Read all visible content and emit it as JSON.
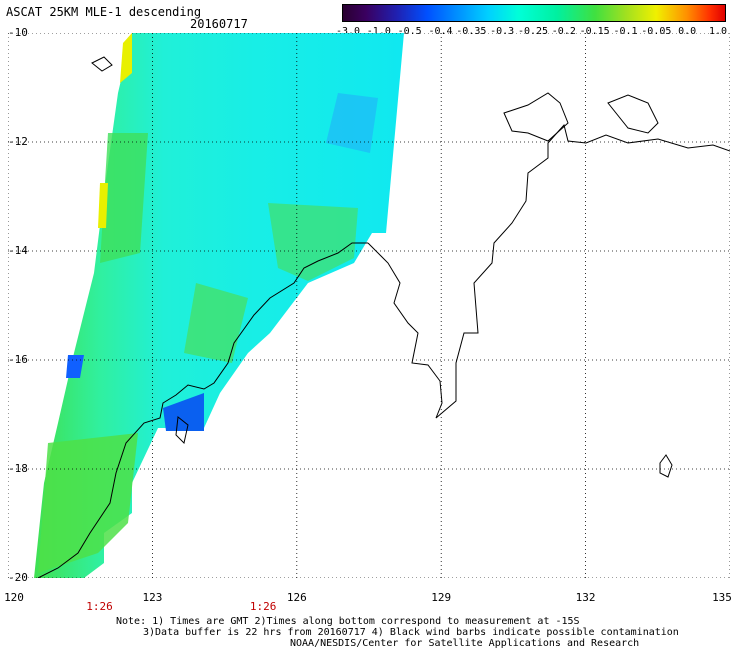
{
  "title": "ASCAT 25KM MLE-1 descending",
  "date": "20160717",
  "colorbar": {
    "ticks": [
      "-3.0",
      "-1.0",
      "-0.5",
      "-0.4",
      "-0.35",
      "-0.3",
      "-0.25",
      "-0.2",
      "-0.15",
      "-0.1",
      "-0.05",
      "0.0",
      "1.0"
    ]
  },
  "map": {
    "lon_ticks": [
      "120",
      "123",
      "126",
      "129",
      "132",
      "135"
    ],
    "lat_ticks": [
      "-10",
      "-12",
      "-14",
      "-16",
      "-18",
      "-20"
    ],
    "lon_range": [
      120,
      135
    ],
    "lat_range": [
      -20,
      -10
    ],
    "time_labels": [
      {
        "text": "1:26",
        "lon": 121.9
      },
      {
        "text": "1:26",
        "lon": 125.3
      }
    ]
  },
  "notes": {
    "line1": "Note: 1) Times are GMT 2)Times along bottom correspond to measurement at -15S",
    "line2": "3)Data buffer is 22 hrs from 20160717 4) Black wind barbs indicate possible contamination",
    "line3": "NOAA/NESDIS/Center for Satellite Applications and Research"
  }
}
